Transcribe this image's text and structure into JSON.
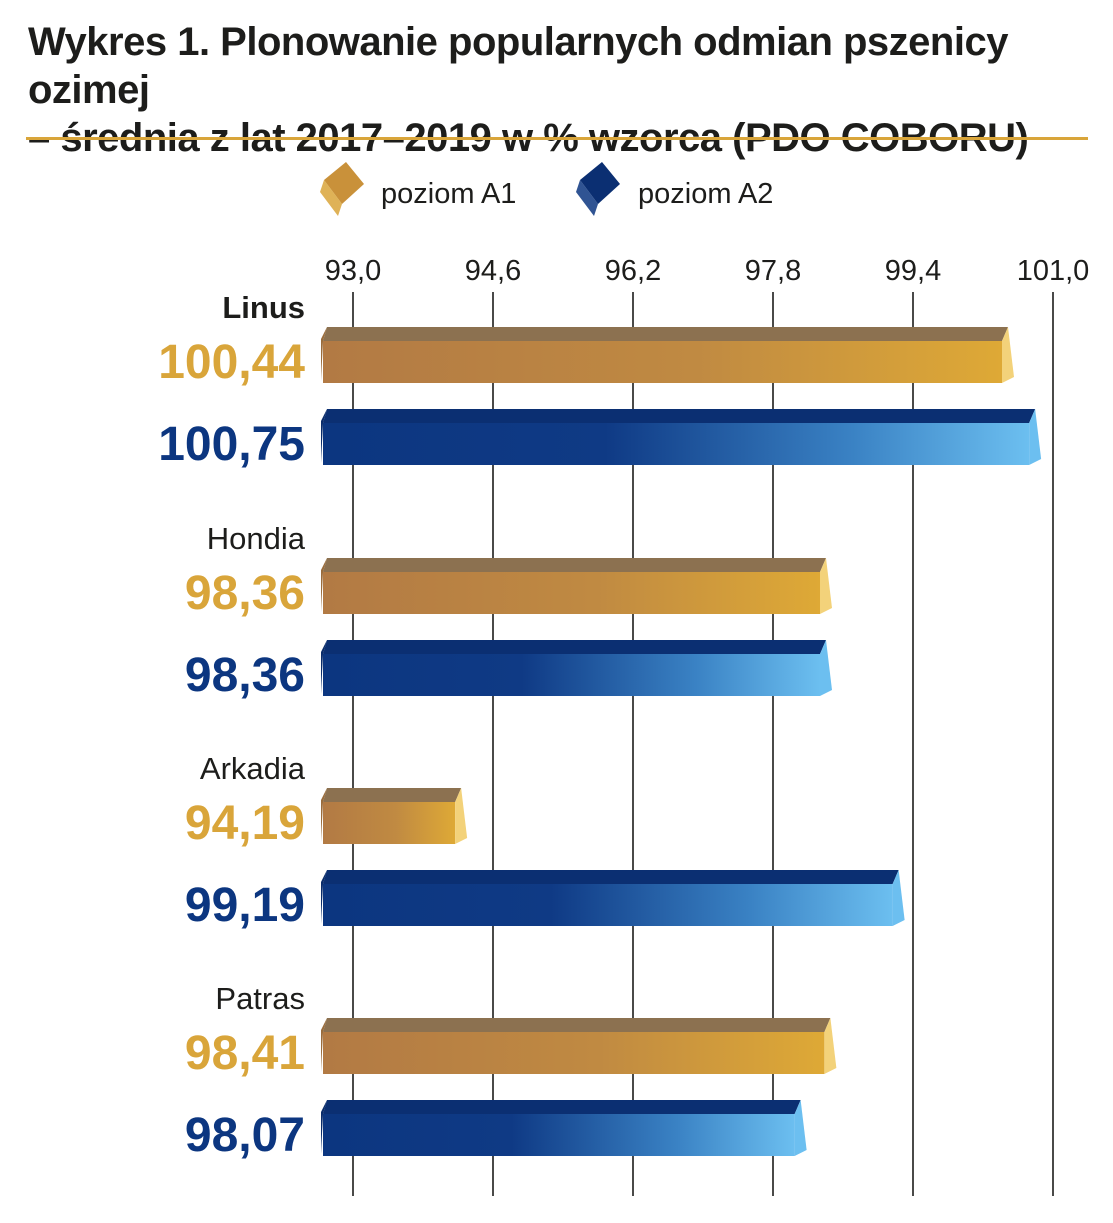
{
  "header": {
    "title_line1": "Wykres 1. Plonowanie popularnych odmian pszenicy ozimej",
    "title_line2": "– średnia z lat 2017–2019 w % wzorca (PDO COBORU)"
  },
  "colors": {
    "a1": "#d9a53a",
    "a1_dark": "#b27a44",
    "a1_top": "#8c7150",
    "a2": "#0c3680",
    "a2_light": "#6cbff0",
    "a2_top": "#0b2f72",
    "title_rule": "#d9a53a",
    "text": "#1d1d1b"
  },
  "chart_data": {
    "type": "bar",
    "orientation": "horizontal",
    "title": "Wykres 1. Plonowanie popularnych odmian pszenicy ozimej – średnia z lat 2017–2019 w % wzorca (PDO COBORU)",
    "categories": [
      "Linus",
      "Hondia",
      "Arkadia",
      "Patras"
    ],
    "series": [
      {
        "name": "poziom A1",
        "values": [
          100.44,
          98.36,
          94.19,
          98.41
        ],
        "labels": [
          "100,44",
          "98,36",
          "94,19",
          "98,41"
        ]
      },
      {
        "name": "poziom A2",
        "values": [
          100.75,
          98.36,
          99.19,
          98.07
        ],
        "labels": [
          "100,75",
          "98,36",
          "99,19",
          "98,07"
        ]
      }
    ],
    "xlim": [
      93.0,
      101.0
    ],
    "ticks": [
      "93,0",
      "94,6",
      "96,2",
      "97,8",
      "99,4",
      "101,0"
    ],
    "tick_values": [
      93.0,
      94.6,
      96.2,
      97.8,
      99.4,
      101.0
    ],
    "grid": true,
    "legend": "top"
  }
}
